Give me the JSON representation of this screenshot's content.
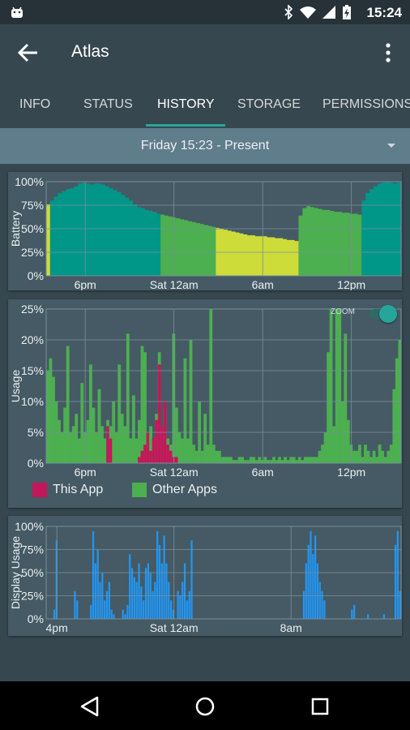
{
  "status_bar": {
    "time": "15:24",
    "icons": [
      "android-icon",
      "bluetooth-icon",
      "wifi-icon",
      "signal-icon",
      "battery-charging-icon"
    ]
  },
  "app_bar": {
    "title": "Atlas",
    "back_icon": "arrow-back-icon",
    "menu_icon": "more-vert-icon"
  },
  "tabs": [
    {
      "label": "INFO",
      "active": false
    },
    {
      "label": "STATUS",
      "active": false
    },
    {
      "label": "HISTORY",
      "active": true
    },
    {
      "label": "STORAGE",
      "active": false
    },
    {
      "label": "PERMISSIONS",
      "active": false
    }
  ],
  "range_selector": {
    "label": "Friday 15:23 - Present",
    "icon": "dropdown-caret-icon"
  },
  "colors": {
    "teal": "#009688",
    "green": "#4caf50",
    "yellow": "#cddc39",
    "this_app": "#c2185b",
    "other_apps": "#4caf50",
    "display": "#2196f3",
    "card_bg": "#455a64",
    "accent": "#26a69a"
  },
  "zoom": {
    "label": "ZOOM",
    "enabled": true
  },
  "legend": [
    {
      "label": "This App",
      "color": "#c2185b"
    },
    {
      "label": "Other Apps",
      "color": "#4caf50"
    }
  ],
  "chart_data": [
    {
      "type": "area",
      "ylabel": "Battery",
      "ylim": [
        0,
        100
      ],
      "yticks": [
        "100%",
        "75%",
        "50%",
        "25%",
        "0%"
      ],
      "xticks": [
        "6pm",
        "Sat 12am",
        "6am",
        "12pm"
      ],
      "x": [
        0,
        1,
        2,
        3,
        4,
        5,
        6,
        7,
        8,
        9,
        10,
        11,
        12,
        13,
        14,
        15,
        16,
        17,
        18,
        19,
        20,
        21,
        22,
        23,
        24,
        25,
        26,
        27,
        28,
        29,
        30,
        31,
        32,
        33,
        34,
        35,
        36,
        37,
        38,
        39,
        40,
        41,
        42,
        43,
        44,
        45,
        46,
        47,
        48,
        49,
        50,
        51,
        52,
        53,
        54,
        55,
        56,
        57,
        58,
        59,
        60,
        61,
        62,
        63,
        64,
        65,
        66,
        67,
        68,
        69,
        70,
        71,
        72,
        73,
        74,
        75,
        76,
        77,
        78,
        79,
        80,
        81,
        82,
        83,
        84,
        85,
        86,
        87,
        88,
        89
      ],
      "series": [
        {
          "values": [
            76,
            80,
            84,
            88,
            90,
            92,
            93,
            95,
            98,
            99,
            98,
            97,
            98,
            98,
            97,
            95,
            93,
            91,
            89,
            86,
            83,
            80,
            76,
            73,
            72,
            70,
            69,
            68,
            66,
            65,
            64,
            63,
            62,
            61,
            60,
            59,
            58,
            57,
            56,
            55,
            54,
            53,
            52,
            51,
            50,
            49,
            48,
            47,
            46,
            45,
            44,
            43,
            43,
            42,
            42,
            42,
            41,
            41,
            40,
            40,
            39,
            38,
            38,
            37,
            64,
            72,
            74,
            73,
            72,
            71,
            70,
            70,
            69,
            68,
            68,
            67,
            67,
            66,
            66,
            65,
            80,
            88,
            92,
            95,
            98,
            99,
            100,
            99,
            98,
            99
          ],
          "color_segments": [
            [
              0,
              0,
              "yellow"
            ],
            [
              1,
              28,
              "teal"
            ],
            [
              29,
              42,
              "green"
            ],
            [
              43,
              63,
              "yellow"
            ],
            [
              64,
              79,
              "green"
            ],
            [
              80,
              89,
              "teal"
            ]
          ]
        }
      ]
    },
    {
      "type": "bar",
      "ylabel": "Usage",
      "ylim": [
        0,
        25
      ],
      "yticks": [
        "25%",
        "20%",
        "15%",
        "10%",
        "5%",
        "0%"
      ],
      "xticks": [
        "6pm",
        "Sat 12am",
        "6am",
        "12pm"
      ],
      "series": [
        {
          "name": "Other Apps",
          "values": [
            15,
            17,
            14,
            10,
            7,
            5,
            9,
            19,
            5,
            6,
            8,
            4,
            13,
            5,
            7,
            16,
            9,
            5,
            12,
            6,
            4,
            7,
            6,
            10,
            5,
            16,
            8,
            6,
            21,
            4,
            11,
            4,
            7,
            19,
            18,
            4,
            6,
            3,
            8,
            18,
            6,
            9,
            4,
            3,
            21,
            9,
            5,
            4,
            17,
            4,
            20,
            3,
            2,
            10,
            2,
            8,
            3,
            25,
            3,
            2,
            2,
            1,
            1,
            1,
            1,
            0.5,
            0.5,
            1,
            1,
            0.5,
            0.5,
            1,
            1,
            0.5,
            1,
            0.5,
            1,
            0.5,
            0.5,
            1,
            0.5,
            1,
            0.5,
            1,
            0.5,
            1,
            1,
            0.5,
            1,
            0.5,
            1,
            1,
            1,
            1,
            1,
            2,
            3,
            5,
            18,
            25,
            6,
            25,
            25,
            10,
            21,
            7,
            3,
            2,
            2,
            3,
            1,
            3,
            2,
            1,
            2,
            1,
            3,
            2,
            1,
            2,
            3,
            12,
            17,
            20
          ]
        },
        {
          "name": "This App",
          "values": [
            0,
            0,
            0,
            0,
            0,
            0,
            0,
            0,
            0,
            0,
            0,
            0,
            0,
            0,
            0,
            0,
            0,
            0,
            0,
            0,
            0,
            6,
            4,
            0,
            0,
            0,
            0,
            0,
            0,
            0,
            0,
            0,
            1,
            2,
            3,
            5,
            2,
            4,
            7,
            16,
            6,
            10,
            3,
            2,
            1,
            1,
            0,
            0,
            0,
            0,
            0,
            0,
            0,
            0,
            0,
            0,
            0,
            0,
            0,
            0,
            0,
            0,
            0,
            0,
            0,
            0,
            0,
            0,
            0,
            0,
            0,
            0,
            0,
            0,
            0,
            0,
            0,
            0,
            0,
            0,
            0,
            0,
            0,
            0,
            0,
            0,
            0,
            0,
            0,
            0,
            0,
            0,
            0,
            0,
            0,
            0,
            0,
            0,
            0,
            0,
            0,
            0,
            0,
            0,
            0,
            0,
            0,
            0,
            0,
            0,
            0,
            0,
            0,
            0,
            0,
            0,
            0,
            0,
            0,
            0,
            0,
            0,
            0,
            0
          ]
        }
      ]
    },
    {
      "type": "bar",
      "ylabel": "Display Usage",
      "ylim": [
        0,
        100
      ],
      "yticks": [
        "100%",
        "75%",
        "50%",
        "25%",
        "0%"
      ],
      "xticks": [
        "4pm",
        "Sat 12am",
        "8am"
      ],
      "series": [
        {
          "name": "Display",
          "values": [
            0,
            0,
            0,
            10,
            85,
            0,
            0,
            0,
            0,
            0,
            0,
            0,
            30,
            20,
            0,
            0,
            0,
            0,
            0,
            15,
            95,
            60,
            75,
            40,
            50,
            20,
            30,
            40,
            10,
            5,
            0,
            0,
            0,
            10,
            5,
            15,
            70,
            55,
            45,
            40,
            60,
            35,
            20,
            55,
            60,
            50,
            30,
            40,
            95,
            80,
            60,
            90,
            60,
            40,
            20,
            10,
            0,
            30,
            25,
            40,
            60,
            20,
            30,
            85,
            0,
            0,
            0,
            0,
            0,
            0,
            0,
            0,
            0,
            0,
            0,
            0,
            0,
            0,
            0,
            0,
            0,
            0,
            0,
            0,
            0,
            0,
            0,
            0,
            0,
            0,
            0,
            0,
            0,
            0,
            0,
            0,
            0,
            0,
            0,
            0,
            0,
            0,
            0,
            0,
            0,
            0,
            0,
            0,
            0,
            0,
            0,
            0,
            30,
            60,
            80,
            95,
            70,
            90,
            60,
            40,
            30,
            20,
            0,
            0,
            0,
            0,
            0,
            0,
            0,
            0,
            0,
            0,
            0,
            10,
            15,
            0,
            0,
            0,
            0,
            0,
            5,
            0,
            0,
            0,
            0,
            0,
            0,
            5,
            0,
            0,
            0,
            0,
            80,
            95,
            30
          ]
        }
      ]
    }
  ]
}
